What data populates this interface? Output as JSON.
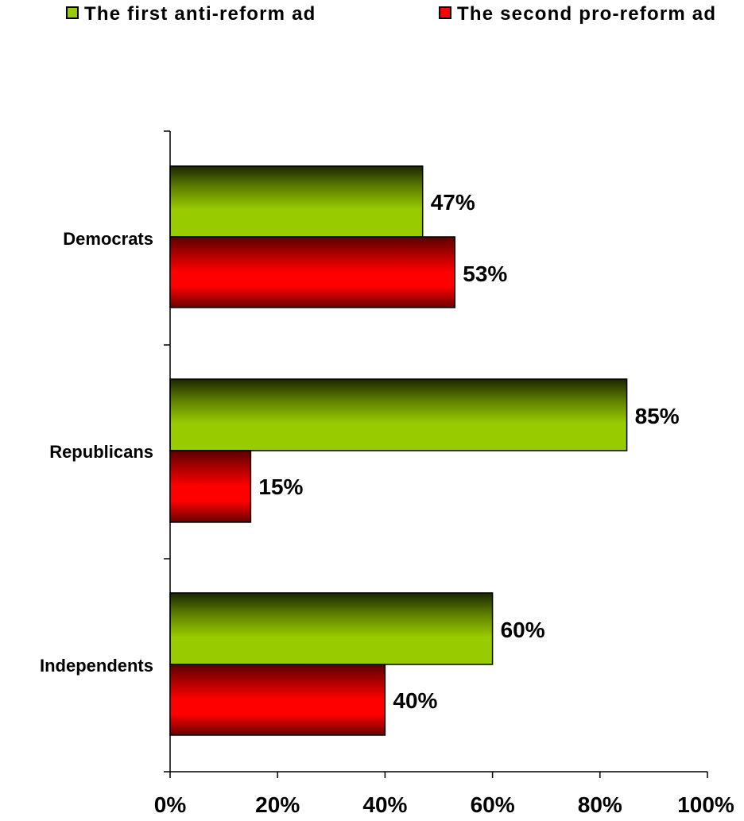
{
  "chart_data": {
    "type": "bar",
    "orientation": "horizontal",
    "categories": [
      "Democrats",
      "Republicans",
      "Independents"
    ],
    "series": [
      {
        "name": "The first anti-reform ad",
        "color": "#99cc00",
        "values": [
          47,
          85,
          60
        ],
        "labels": [
          "47%",
          "85%",
          "60%"
        ]
      },
      {
        "name": "The second pro-reform ad",
        "color": "#ff0000",
        "values": [
          53,
          15,
          40
        ],
        "labels": [
          "53%",
          "15%",
          "40%"
        ]
      }
    ],
    "xlim": [
      0,
      100
    ],
    "x_ticks": [
      "0%",
      "20%",
      "40%",
      "60%",
      "80%",
      "100%"
    ],
    "x_tick_values": [
      0,
      20,
      40,
      60,
      80,
      100
    ],
    "legend_position": "top",
    "grid": false
  }
}
